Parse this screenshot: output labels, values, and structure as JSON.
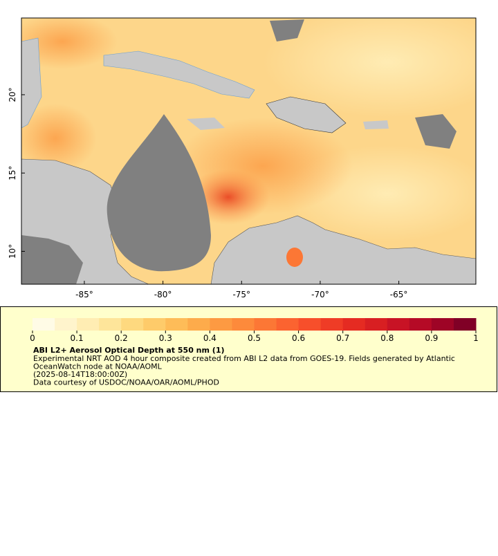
{
  "map": {
    "xlim": [
      -89.0,
      -60.1
    ],
    "ylim": [
      7.9,
      24.9
    ],
    "xticks": [
      {
        "value": -85,
        "label": "-85°"
      },
      {
        "value": -80,
        "label": "-80°"
      },
      {
        "value": -75,
        "label": "-75°"
      },
      {
        "value": -70,
        "label": "-70°"
      },
      {
        "value": -65,
        "label": "-65°"
      }
    ],
    "yticks": [
      {
        "value": 10,
        "label": "10°"
      },
      {
        "value": 15,
        "label": "15°"
      },
      {
        "value": 20,
        "label": "20°"
      }
    ]
  },
  "colorbar": {
    "lim": [
      0,
      1
    ],
    "ticks": [
      0,
      0.1,
      0.2,
      0.3,
      0.4,
      0.5,
      0.6,
      0.7,
      0.8,
      0.9,
      1
    ],
    "colors": [
      "#fffbe6",
      "#fff4cc",
      "#ffedb3",
      "#fee59a",
      "#fed97f",
      "#fecb6a",
      "#febc58",
      "#fdab4b",
      "#fd9a42",
      "#fd8a3b",
      "#fc7735",
      "#fb6330",
      "#f74f2b",
      "#ef3c26",
      "#e52b22",
      "#d81f22",
      "#c81325",
      "#b50a26",
      "#9e0426",
      "#800026"
    ],
    "title": "ABI L2+ Aerosol Optical Depth at 550 nm (1)",
    "lines": [
      "Experimental NRT AOD 4 hour composite created from ABI L2 data from GOES-19. Fields generated by Atlantic",
      "OceanWatch node at NOAA/AOML",
      "(2025-08-14T18:00:00Z)",
      "Data courtesy of USDOC/NOAA/OAR/AOML/PHOD"
    ]
  }
}
